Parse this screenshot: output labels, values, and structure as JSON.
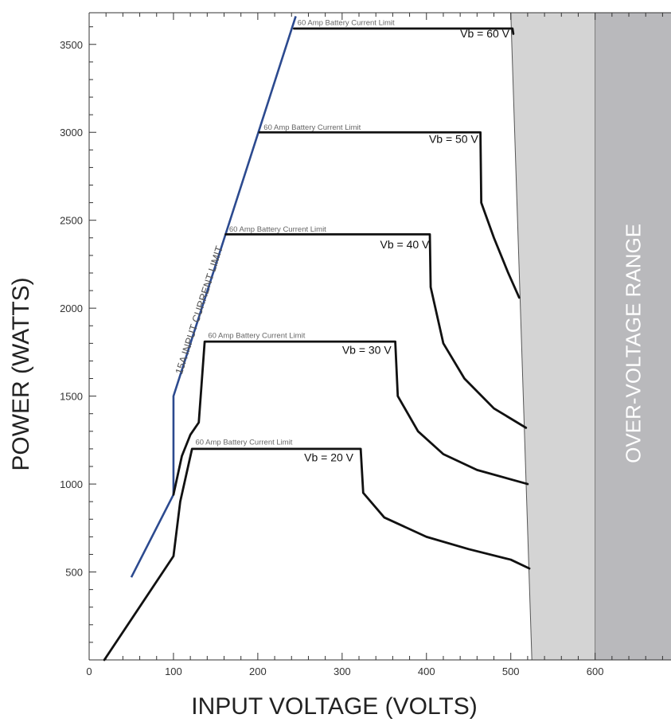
{
  "chart_data": {
    "type": "line",
    "xlabel": "INPUT VOLTAGE (VOLTS)",
    "ylabel": "POWER (WATTS)",
    "xlim": [
      0,
      690
    ],
    "ylim": [
      0,
      3680
    ],
    "x_ticks": [
      0,
      100,
      200,
      300,
      400,
      500,
      600
    ],
    "y_ticks": [
      500,
      1000,
      1500,
      2000,
      2500,
      3000,
      3500
    ],
    "grid": false,
    "over_voltage_label": "OVER-VOLTAGE RANGE",
    "over_voltage_region": {
      "top_left_x": 500,
      "bottom_left_x": 525,
      "split_x": 600
    },
    "input_limit": {
      "label": "15A INPUT CURRENT LIMIT",
      "color": "#2c4a8f",
      "points": [
        [
          50,
          470
        ],
        [
          100,
          940
        ],
        [
          100,
          1500
        ],
        [
          245,
          3660
        ]
      ]
    },
    "battery_limit_label": "60 Amp Battery Current Limit",
    "series": [
      {
        "name": "Vb = 20 V",
        "points": [
          [
            18,
            0
          ],
          [
            100,
            590
          ],
          [
            108,
            900
          ],
          [
            122,
            1200
          ],
          [
            322,
            1200
          ],
          [
            325,
            950
          ],
          [
            350,
            810
          ],
          [
            400,
            700
          ],
          [
            450,
            630
          ],
          [
            500,
            570
          ],
          [
            522,
            520
          ]
        ]
      },
      {
        "name": "Vb = 30 V",
        "points": [
          [
            100,
            940
          ],
          [
            110,
            1160
          ],
          [
            120,
            1280
          ],
          [
            130,
            1350
          ],
          [
            137,
            1810
          ],
          [
            363,
            1810
          ],
          [
            366,
            1500
          ],
          [
            390,
            1300
          ],
          [
            420,
            1170
          ],
          [
            460,
            1080
          ],
          [
            520,
            1000
          ]
        ]
      },
      {
        "name": "Vb = 40 V",
        "points": [
          [
            162,
            2420
          ],
          [
            404,
            2420
          ],
          [
            405,
            2120
          ],
          [
            420,
            1800
          ],
          [
            445,
            1600
          ],
          [
            480,
            1430
          ],
          [
            518,
            1320
          ]
        ]
      },
      {
        "name": "Vb = 50 V",
        "points": [
          [
            202,
            3000
          ],
          [
            464,
            3000
          ],
          [
            465,
            2600
          ],
          [
            480,
            2400
          ],
          [
            497,
            2200
          ],
          [
            510,
            2060
          ]
        ]
      },
      {
        "name": "Vb = 60 V",
        "points": [
          [
            243,
            3590
          ],
          [
            502,
            3590
          ],
          [
            503,
            3560
          ]
        ]
      }
    ],
    "annotations": [
      {
        "text": "Vb = 60 V",
        "x": 440,
        "y": 3540
      },
      {
        "text": "Vb = 50 V",
        "x": 403,
        "y": 2940
      },
      {
        "text": "Vb = 40 V",
        "x": 345,
        "y": 2340
      },
      {
        "text": "Vb = 30 V",
        "x": 300,
        "y": 1740
      },
      {
        "text": "Vb = 20 V",
        "x": 255,
        "y": 1130
      }
    ],
    "limit_annotations": [
      {
        "x": 247,
        "y": 3610
      },
      {
        "x": 207,
        "y": 3015
      },
      {
        "x": 166,
        "y": 2435
      },
      {
        "x": 141,
        "y": 1830
      },
      {
        "x": 126,
        "y": 1225
      }
    ]
  }
}
